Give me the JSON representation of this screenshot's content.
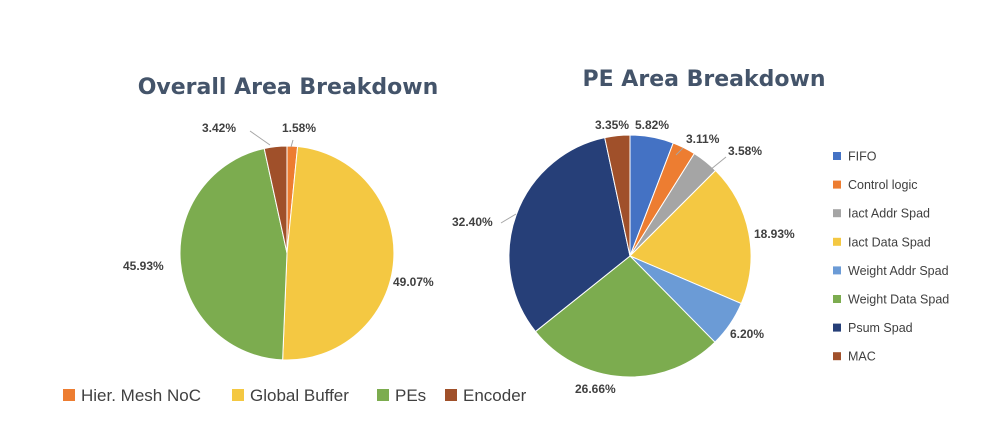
{
  "chart_data": [
    {
      "type": "pie",
      "title": "Overall Area Breakdown",
      "legend_position": "bottom",
      "slices": [
        {
          "label": "Hier. Mesh NoC",
          "value": 1.58,
          "value_label": "1.58%",
          "color": "#ed7d31"
        },
        {
          "label": "Global Buffer",
          "value": 49.07,
          "value_label": "49.07%",
          "color": "#f4c842"
        },
        {
          "label": "PEs",
          "value": 45.93,
          "value_label": "45.93%",
          "color": "#7cac4f"
        },
        {
          "label": "Encoder",
          "value": 3.42,
          "value_label": "3.42%",
          "color": "#a0502a"
        }
      ]
    },
    {
      "type": "pie",
      "title": "PE Area Breakdown",
      "legend_position": "right",
      "slices": [
        {
          "label": "FIFO",
          "value": 5.82,
          "value_label": "5.82%",
          "color": "#4472c4"
        },
        {
          "label": "Control logic",
          "value": 3.11,
          "value_label": "3.11%",
          "color": "#ed7d31"
        },
        {
          "label": "Iact Addr Spad",
          "value": 3.58,
          "value_label": "3.58%",
          "color": "#a5a5a5"
        },
        {
          "label": "Iact Data Spad",
          "value": 18.93,
          "value_label": "18.93%",
          "color": "#f4c842"
        },
        {
          "label": "Weight Addr Spad",
          "value": 6.2,
          "value_label": "6.20%",
          "color": "#6b9bd6"
        },
        {
          "label": "Weight Data Spad",
          "value": 26.66,
          "value_label": "26.66%",
          "color": "#7cac4f"
        },
        {
          "label": "Psum Spad",
          "value": 32.4,
          "value_label": "32.40%",
          "color": "#263f78"
        },
        {
          "label": "MAC",
          "value": 3.35,
          "value_label": "3.35%",
          "color": "#a0502a"
        }
      ]
    }
  ]
}
